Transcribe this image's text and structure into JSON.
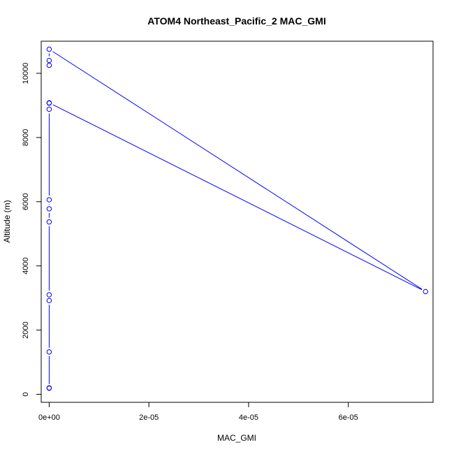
{
  "chart_data": {
    "type": "scatter",
    "title": "ATOM4 Northeast_Pacific_2 MAC_GMI",
    "xlabel": "MAC_GMI",
    "ylabel": "Altitude (m)",
    "xlim": [
      -1.6e-06,
      7.7e-05
    ],
    "ylim": [
      -250,
      11000
    ],
    "x_ticks": [
      {
        "value": 0,
        "label": "0e+00"
      },
      {
        "value": 2e-05,
        "label": "2e-05"
      },
      {
        "value": 4e-05,
        "label": "4e-05"
      },
      {
        "value": 6e-05,
        "label": "6e-05"
      }
    ],
    "y_ticks": [
      {
        "value": 0,
        "label": "0"
      },
      {
        "value": 2000,
        "label": "2000"
      },
      {
        "value": 4000,
        "label": "4000"
      },
      {
        "value": 6000,
        "label": "6000"
      },
      {
        "value": 8000,
        "label": "8000"
      },
      {
        "value": 10000,
        "label": "10000"
      }
    ],
    "series": [
      {
        "color": "#0000ff",
        "style": "line with circle markers",
        "points": [
          {
            "x": 0,
            "y": 200
          },
          {
            "x": 0,
            "y": 190
          },
          {
            "x": 0,
            "y": 1320
          },
          {
            "x": 0,
            "y": 2920
          },
          {
            "x": 0,
            "y": 3100
          },
          {
            "x": 0,
            "y": 5370
          },
          {
            "x": 0,
            "y": 5780
          },
          {
            "x": 0,
            "y": 6060
          },
          {
            "x": 0,
            "y": 8880
          },
          {
            "x": 0,
            "y": 9070
          },
          {
            "x": 0,
            "y": 9080
          },
          {
            "x": 7.55e-05,
            "y": 3200
          },
          {
            "x": 0,
            "y": 10750
          },
          {
            "x": 0,
            "y": 10400
          },
          {
            "x": 0,
            "y": 10250
          }
        ]
      }
    ]
  }
}
